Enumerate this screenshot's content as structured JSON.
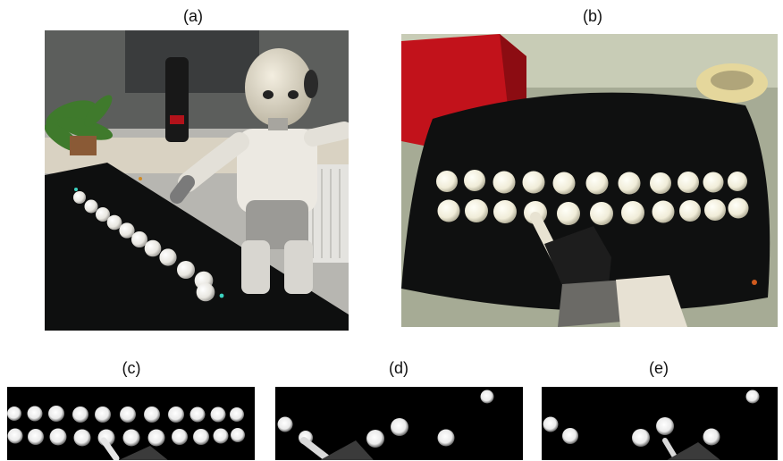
{
  "panels": [
    {
      "id": "a",
      "label": "(a)",
      "description_icon": "robot-pointing-balls-photo"
    },
    {
      "id": "b",
      "label": "(b)",
      "description_icon": "robot-camera-view-photo"
    },
    {
      "id": "c",
      "label": "(c)",
      "description_icon": "segmented-balls-mask"
    },
    {
      "id": "d",
      "label": "(d)",
      "description_icon": "segmented-balls-mask"
    },
    {
      "id": "e",
      "label": "(e)",
      "description_icon": "segmented-balls-mask"
    }
  ],
  "colors": {
    "table": "#0f1010",
    "ball": "#f2f0ea",
    "wall": "#c9c8c4",
    "red_object": "#c2121b",
    "camera_floor": "#9aa08a"
  }
}
